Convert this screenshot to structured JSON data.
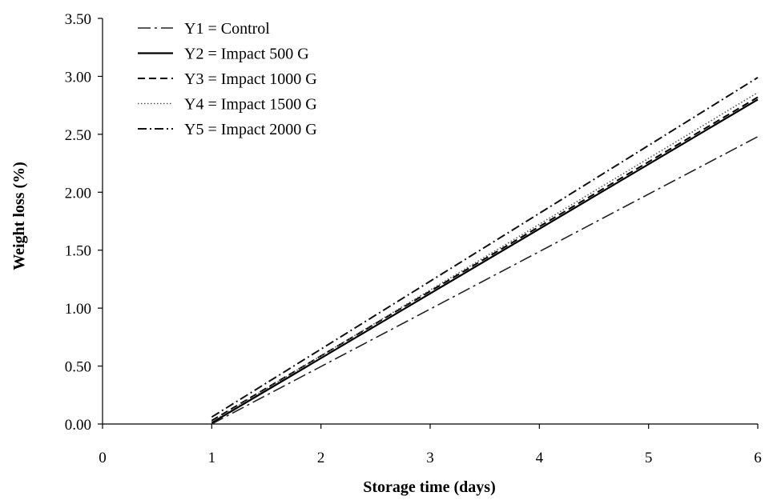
{
  "chart_data": {
    "type": "line",
    "title": "",
    "xlabel": "Storage time (days)",
    "ylabel": "Weight loss (%)",
    "xlim": [
      0,
      6
    ],
    "ylim": [
      0,
      3.5
    ],
    "xticks": [
      "0",
      "1",
      "2",
      "3",
      "4",
      "5",
      "6"
    ],
    "yticks": [
      "0.00",
      "0.50",
      "1.00",
      "1.50",
      "2.00",
      "2.50",
      "3.00",
      "3.50"
    ],
    "grid": false,
    "legend_position": "top-left",
    "series": [
      {
        "name": "Y1 = Control",
        "x": [
          1,
          6
        ],
        "y": [
          0.0,
          2.48
        ],
        "style": "long-dash-dot",
        "color": "#222222"
      },
      {
        "name": "Y2 = Impact 500 G",
        "x": [
          1,
          6
        ],
        "y": [
          0.01,
          2.8
        ],
        "style": "solid",
        "color": "#000000"
      },
      {
        "name": "Y3 = Impact 1000 G",
        "x": [
          1,
          6
        ],
        "y": [
          0.03,
          2.82
        ],
        "style": "dash",
        "color": "#000000"
      },
      {
        "name": "Y4 = Impact 1500 G",
        "x": [
          1,
          6
        ],
        "y": [
          0.02,
          2.86
        ],
        "style": "dotted",
        "color": "#555555"
      },
      {
        "name": "Y5 = Impact 2000 G",
        "x": [
          1,
          6
        ],
        "y": [
          0.06,
          2.99
        ],
        "style": "dash-dot",
        "color": "#111111"
      }
    ]
  }
}
